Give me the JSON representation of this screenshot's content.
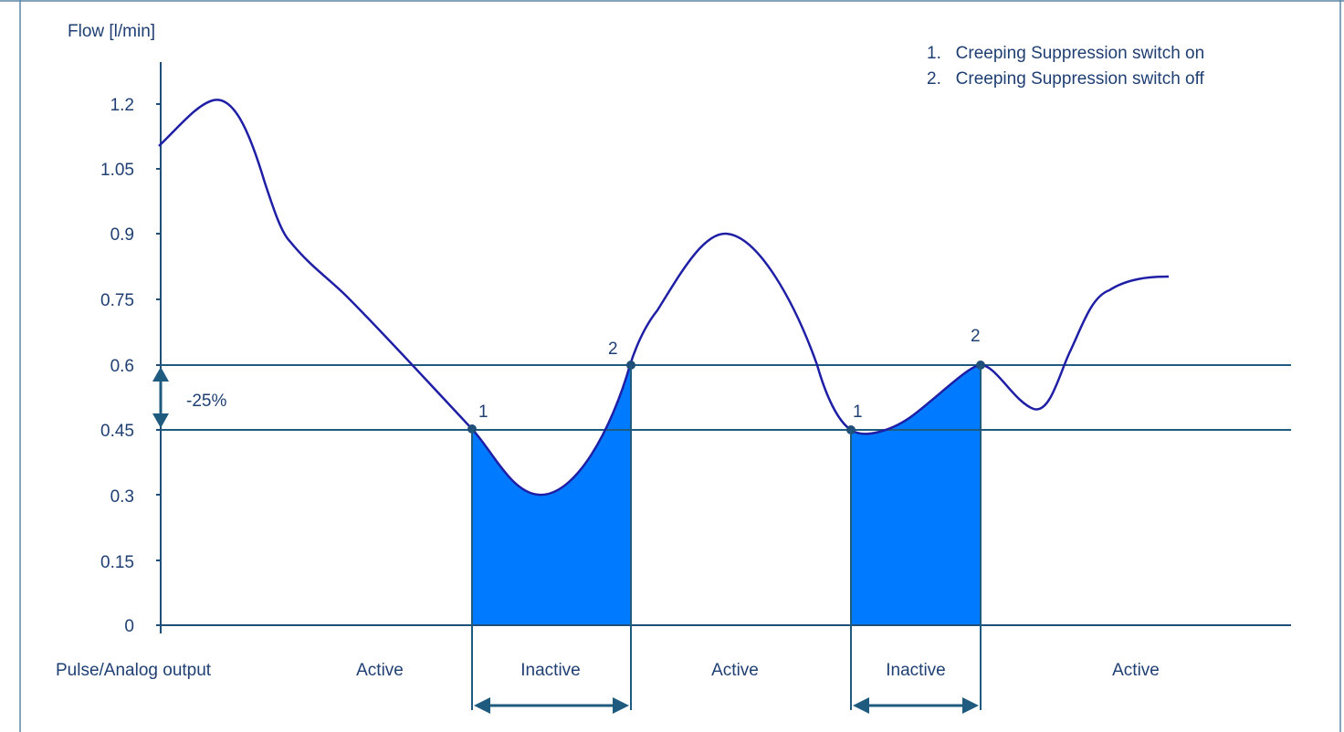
{
  "colors": {
    "axis": "#1f4e79",
    "threshold": "#1f5a7f",
    "curve": "#1f1fa6",
    "fill": "#007bff",
    "text": "#1f3f73",
    "frame": "#5a86a6"
  },
  "y_axis": {
    "title": "Flow [l/min]",
    "ticks": [
      "0",
      "0.15",
      "0.3",
      "0.45",
      "0.6",
      "0.75",
      "0.9",
      "1.05",
      "1.2"
    ]
  },
  "legend": {
    "items": [
      "1.   Creeping Suppression switch on",
      "2.   Creeping Suppression switch off"
    ]
  },
  "hysteresis_label": "-25%",
  "thresholds": {
    "switch_on": 0.45,
    "switch_off": 0.6
  },
  "markers": [
    "1",
    "2",
    "1",
    "2"
  ],
  "output_row": {
    "title": "Pulse/Analog output",
    "states": [
      "Active",
      "Inactive",
      "Active",
      "Inactive",
      "Active"
    ]
  },
  "icons": {
    "hysteresis_arrow": "double-arrow-vertical-icon",
    "interval_arrow": "double-arrow-horizontal-icon"
  }
}
